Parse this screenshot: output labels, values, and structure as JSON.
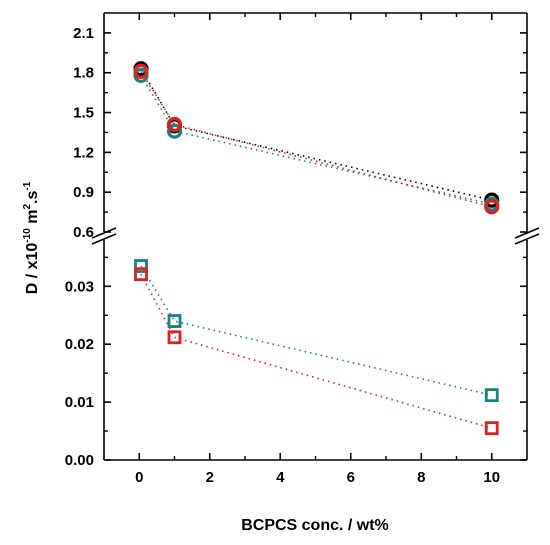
{
  "chart_data": {
    "type": "scatter",
    "title": "",
    "xlabel": "BCPCS conc. / wt%",
    "ylabel": {
      "prefix": "D / x10",
      "exp1": "-10",
      "mid1": " m",
      "exp2": "2",
      "mid2": ".s",
      "exp3": "-1"
    },
    "xlim": [
      -1,
      11
    ],
    "x_ticks": [
      "0",
      "2",
      "4",
      "6",
      "8",
      "10"
    ],
    "axis_break": true,
    "upper_panel": {
      "ylim": [
        0.6,
        2.25
      ],
      "y_ticks": [
        "0.6",
        "0.9",
        "1.2",
        "1.5",
        "1.8",
        "2.1"
      ],
      "series": [
        {
          "marker": "circle",
          "color": "#000000",
          "x": [
            0.05,
            1,
            10
          ],
          "y": [
            1.83,
            1.4,
            0.84
          ]
        },
        {
          "marker": "circle",
          "color": "#1a8080",
          "x": [
            0.05,
            1,
            10
          ],
          "y": [
            1.78,
            1.36,
            0.81
          ]
        },
        {
          "marker": "circle",
          "color": "#e02020",
          "x": [
            0.05,
            1,
            10
          ],
          "y": [
            1.81,
            1.41,
            0.79
          ]
        }
      ]
    },
    "lower_panel": {
      "ylim": [
        0.0,
        0.038
      ],
      "y_ticks": [
        "0.00",
        "0.01",
        "0.02",
        "0.03"
      ],
      "series": [
        {
          "marker": "square",
          "color": "#1a8080",
          "x": [
            0.05,
            1,
            10
          ],
          "y": [
            0.0335,
            0.024,
            0.0112
          ]
        },
        {
          "marker": "square",
          "color": "#e02020",
          "x": [
            0.05,
            1,
            10
          ],
          "y": [
            0.0321,
            0.0212,
            0.0055
          ]
        }
      ]
    },
    "grid": false,
    "legend": "none"
  }
}
